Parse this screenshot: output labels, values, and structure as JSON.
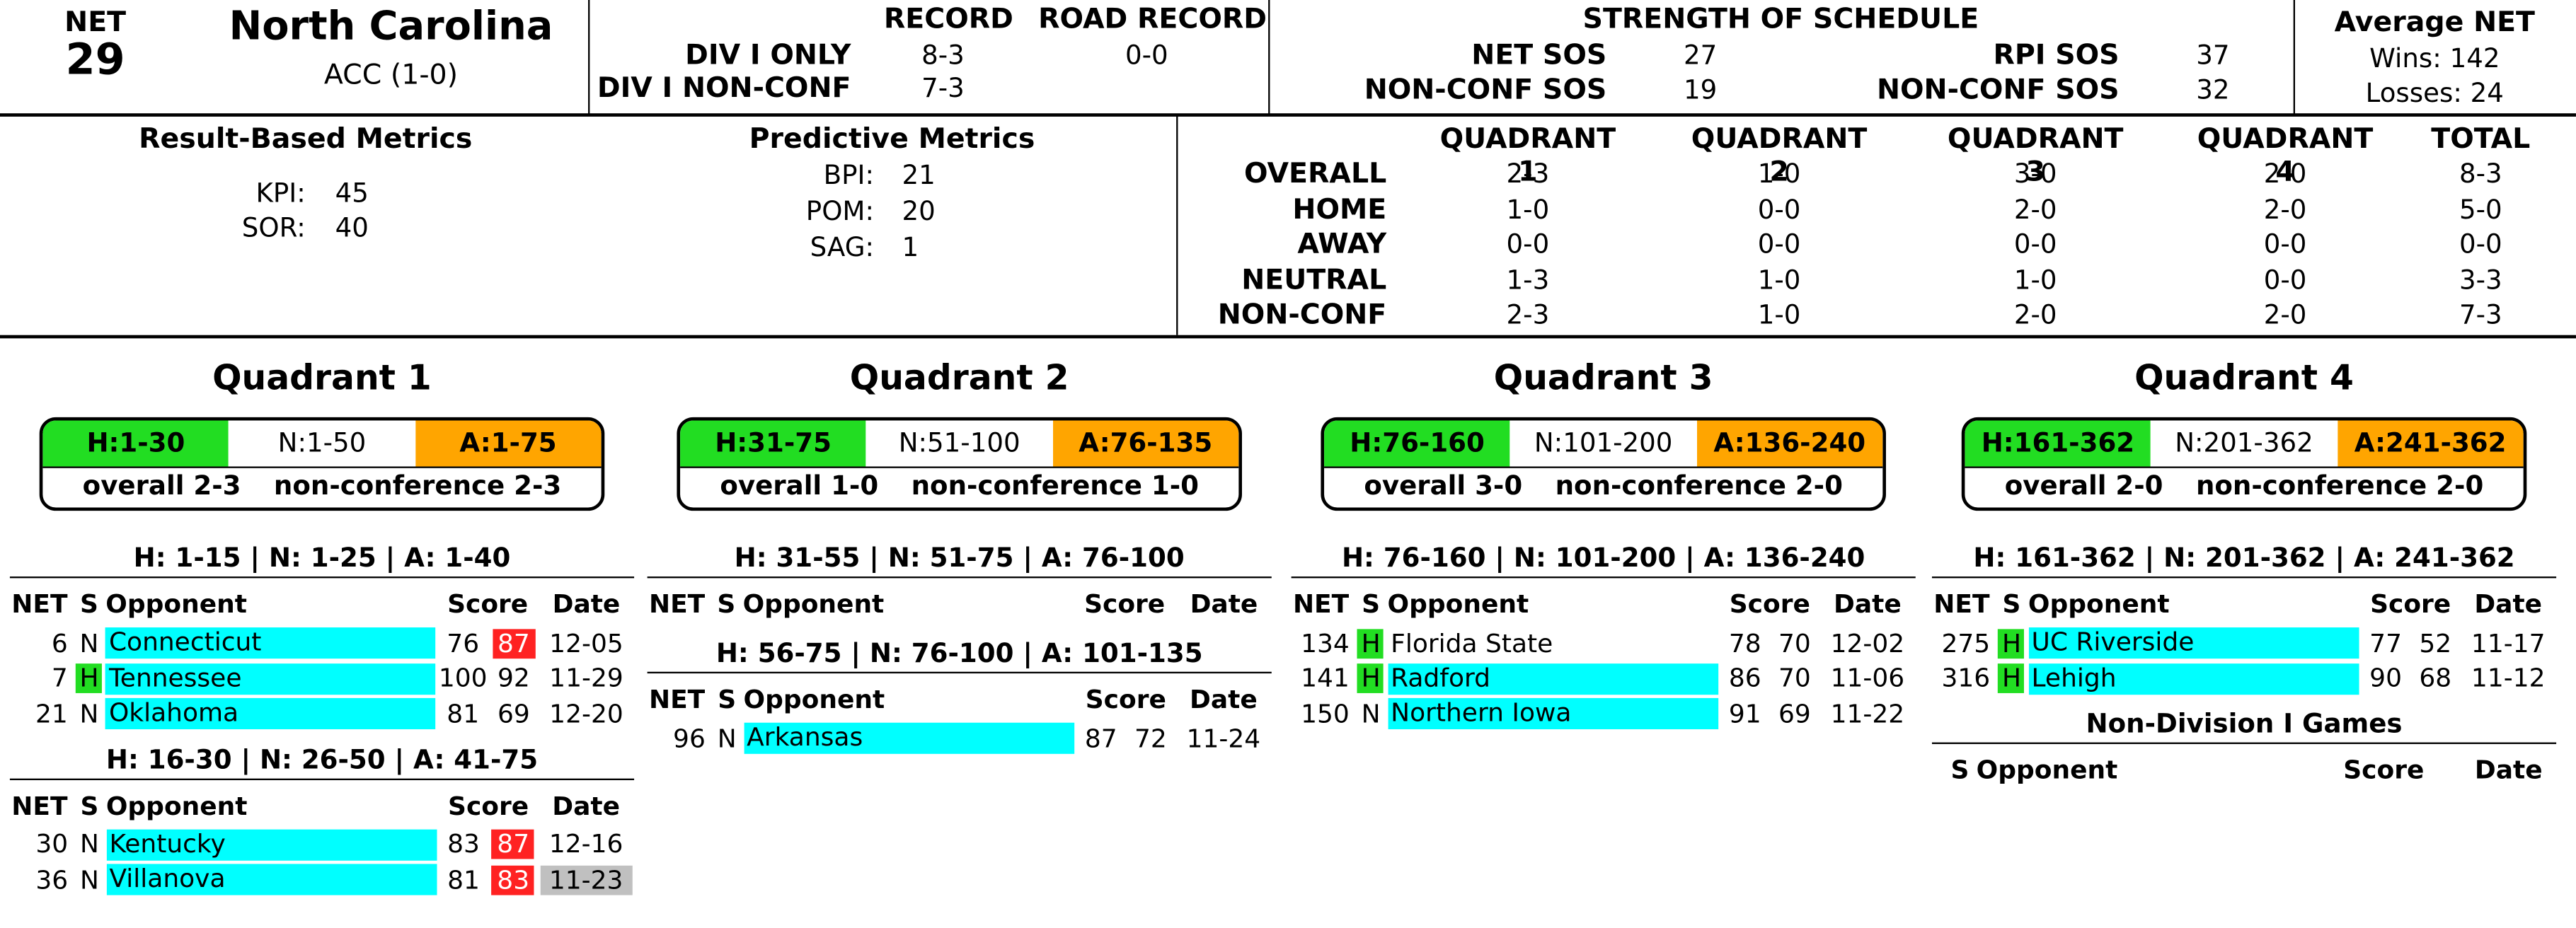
{
  "team": {
    "net_label": "NET",
    "net_rank": "29",
    "name": "North Carolina",
    "conference": "ACC (1-0)"
  },
  "record": {
    "record_header": "RECORD",
    "road_header": "ROAD RECORD",
    "div1_only_label": "DIV I ONLY",
    "div1_only_value": "8-3",
    "div1_nonconf_label": "DIV I NON-CONF",
    "div1_nonconf_value": "7-3",
    "road_value": "0-0"
  },
  "sos": {
    "header": "STRENGTH OF SCHEDULE",
    "net_sos_label": "NET SOS",
    "net_sos": "27",
    "rpi_sos_label": "RPI SOS",
    "rpi_sos": "37",
    "nonconf_sos_label": "NON-CONF SOS",
    "nonconf_sos": "19",
    "rpi_nonconf_sos_label": "NON-CONF SOS",
    "rpi_nonconf_sos": "32"
  },
  "avg_net": {
    "header": "Average NET",
    "wins": "Wins: 142",
    "losses": "Losses: 24"
  },
  "result_metrics": {
    "header": "Result-Based Metrics",
    "kpi_label": "KPI:",
    "kpi": "45",
    "sor_label": "SOR:",
    "sor": "40"
  },
  "predictive_metrics": {
    "header": "Predictive Metrics",
    "bpi_label": "BPI:",
    "bpi": "21",
    "pom_label": "POM:",
    "pom": "20",
    "sag_label": "SAG:",
    "sag": "1"
  },
  "quad_table": {
    "headers": [
      "QUADRANT 1",
      "QUADRANT 2",
      "QUADRANT 3",
      "QUADRANT 4",
      "TOTAL"
    ],
    "rows": [
      {
        "label": "OVERALL",
        "values": [
          "2-3",
          "1-0",
          "3-0",
          "2-0",
          "8-3"
        ]
      },
      {
        "label": "HOME",
        "values": [
          "1-0",
          "0-0",
          "2-0",
          "2-0",
          "5-0"
        ]
      },
      {
        "label": "AWAY",
        "values": [
          "0-0",
          "0-0",
          "0-0",
          "0-0",
          "0-0"
        ]
      },
      {
        "label": "NEUTRAL",
        "values": [
          "1-3",
          "1-0",
          "1-0",
          "0-0",
          "3-3"
        ]
      },
      {
        "label": "NON-CONF",
        "values": [
          "2-3",
          "1-0",
          "2-0",
          "2-0",
          "7-3"
        ]
      }
    ]
  },
  "table_headers": {
    "net": "NET",
    "s": "S",
    "opponent": "Opponent",
    "score": "Score",
    "date": "Date"
  },
  "quadrants": [
    {
      "title": "Quadrant 1",
      "h": "H:1-30",
      "n": "N:1-50",
      "a": "A:1-75",
      "overall": "overall 2-3",
      "nonconf": "non-conference 2-3",
      "groups": [
        {
          "range": "H: 1-15 | N: 1-25 | A: 1-40",
          "games": [
            {
              "net": "6",
              "s": "N",
              "opp": "Connecticut",
              "score1": "76",
              "score2": "87",
              "date": "12-05",
              "loss": true,
              "home": false,
              "grey": false
            },
            {
              "net": "7",
              "s": "H",
              "opp": "Tennessee",
              "score1": "100",
              "score2": "92",
              "date": "11-29",
              "loss": false,
              "home": true,
              "grey": false
            },
            {
              "net": "21",
              "s": "N",
              "opp": "Oklahoma",
              "score1": "81",
              "score2": "69",
              "date": "12-20",
              "loss": false,
              "home": false,
              "grey": false
            }
          ]
        },
        {
          "range": "H: 16-30 | N: 26-50 | A: 41-75",
          "games": [
            {
              "net": "30",
              "s": "N",
              "opp": "Kentucky",
              "score1": "83",
              "score2": "87",
              "date": "12-16",
              "loss": true,
              "home": false,
              "grey": false
            },
            {
              "net": "36",
              "s": "N",
              "opp": "Villanova",
              "score1": "81",
              "score2": "83",
              "date": "11-23",
              "loss": true,
              "home": false,
              "grey": true
            }
          ]
        }
      ]
    },
    {
      "title": "Quadrant 2",
      "h": "H:31-75",
      "n": "N:51-100",
      "a": "A:76-135",
      "overall": "overall 1-0",
      "nonconf": "non-conference 1-0",
      "groups": [
        {
          "range": "H: 31-55 | N: 51-75 | A: 76-100",
          "games": []
        },
        {
          "range": "H: 56-75 | N: 76-100 | A: 101-135",
          "games": [
            {
              "net": "96",
              "s": "N",
              "opp": "Arkansas",
              "score1": "87",
              "score2": "72",
              "date": "11-24",
              "loss": false,
              "home": false,
              "grey": false
            }
          ]
        }
      ]
    },
    {
      "title": "Quadrant 3",
      "h": "H:76-160",
      "n": "N:101-200",
      "a": "A:136-240",
      "overall": "overall 3-0",
      "nonconf": "non-conference 2-0",
      "groups": [
        {
          "range": "H: 76-160 | N: 101-200 | A: 136-240",
          "games": [
            {
              "net": "134",
              "s": "H",
              "opp": "Florida State",
              "score1": "78",
              "score2": "70",
              "date": "12-02",
              "loss": false,
              "home": true,
              "grey": false,
              "nohl": true
            },
            {
              "net": "141",
              "s": "H",
              "opp": "Radford",
              "score1": "86",
              "score2": "70",
              "date": "11-06",
              "loss": false,
              "home": true,
              "grey": false
            },
            {
              "net": "150",
              "s": "N",
              "opp": "Northern Iowa",
              "score1": "91",
              "score2": "69",
              "date": "11-22",
              "loss": false,
              "home": false,
              "grey": false
            }
          ]
        }
      ]
    },
    {
      "title": "Quadrant 4",
      "h": "H:161-362",
      "n": "N:201-362",
      "a": "A:241-362",
      "overall": "overall 2-0",
      "nonconf": "non-conference 2-0",
      "groups": [
        {
          "range": "H: 161-362 | N: 201-362 | A: 241-362",
          "games": [
            {
              "net": "275",
              "s": "H",
              "opp": "UC Riverside",
              "score1": "77",
              "score2": "52",
              "date": "11-17",
              "loss": false,
              "home": true,
              "grey": false
            },
            {
              "net": "316",
              "s": "H",
              "opp": "Lehigh",
              "score1": "90",
              "score2": "68",
              "date": "11-12",
              "loss": false,
              "home": true,
              "grey": false
            }
          ]
        }
      ],
      "non_div": {
        "title": "Non-Division I Games",
        "headers": {
          "s": "S",
          "opponent": "Opponent",
          "score": "Score",
          "date": "Date"
        }
      }
    }
  ]
}
